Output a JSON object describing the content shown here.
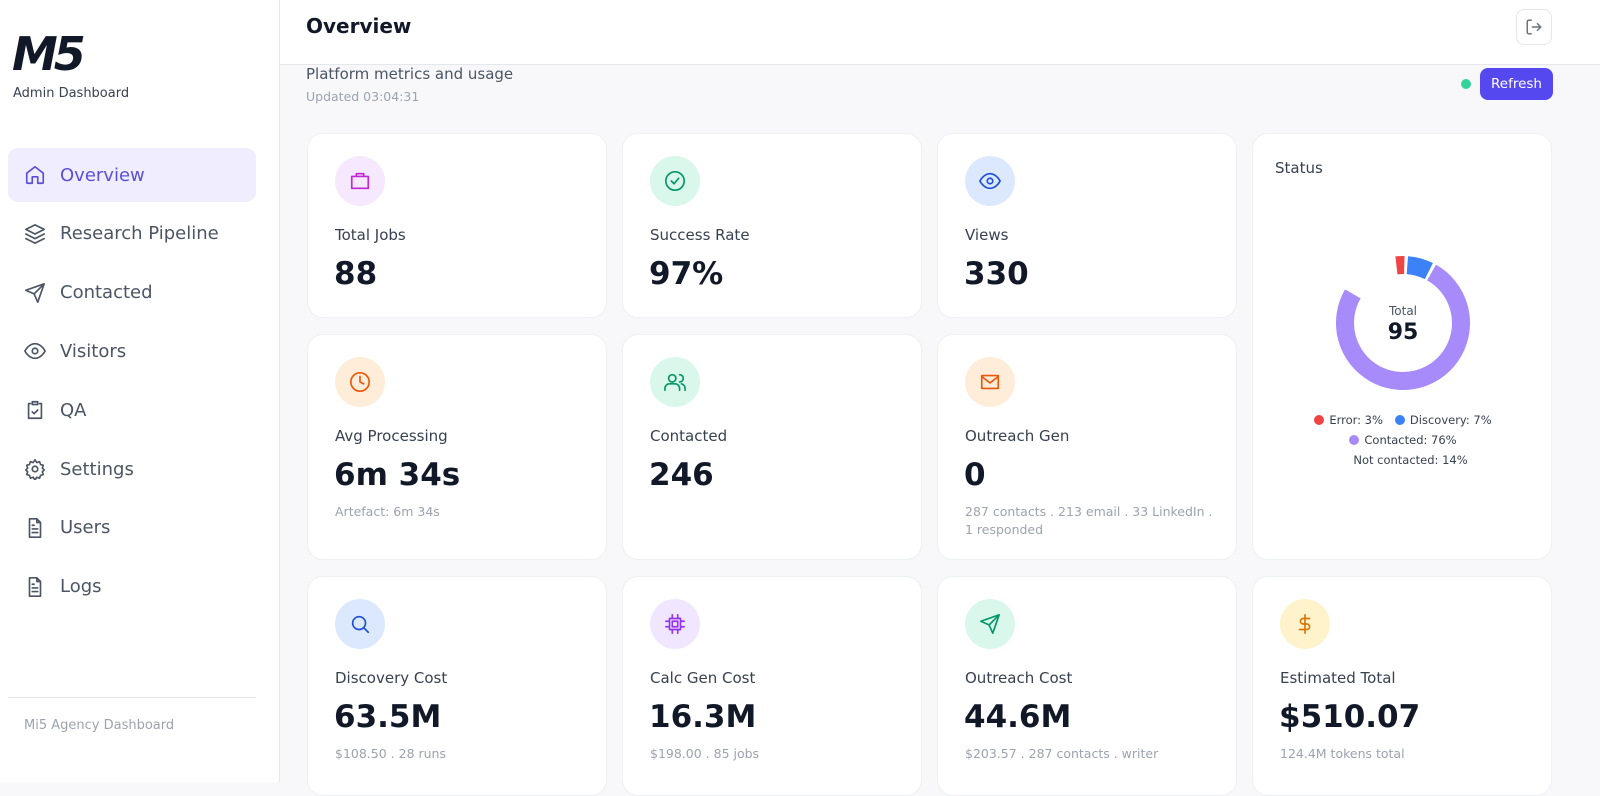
{
  "sidebar": {
    "logo": "M5",
    "subtitle": "Admin Dashboard",
    "nav": [
      "Overview",
      "Research Pipeline",
      "Contacted",
      "Visitors",
      "QA",
      "Settings",
      "Users",
      "Logs"
    ],
    "footer": "Mi5 Agency Dashboard"
  },
  "header": {
    "title": "Overview",
    "subtitle": "Platform metrics and usage",
    "updated": "Updated 03:04:31",
    "refresh": "Refresh"
  },
  "cards": [
    {
      "label": "Total Jobs",
      "value": "88"
    },
    {
      "label": "Success Rate",
      "value": "97%"
    },
    {
      "label": "Views",
      "value": "330"
    },
    {
      "label": "Avg Processing",
      "value": "6m 34s",
      "note": "Artefact: 6m 34s"
    },
    {
      "label": "Contacted",
      "value": "246"
    },
    {
      "label": "Outreach Gen",
      "value": "0",
      "note": "287 contacts . 213 email . 33 LinkedIn . 1 responded"
    },
    {
      "label": "Discovery Cost",
      "value": "63.5M",
      "note": "$108.50 . 28 runs"
    },
    {
      "label": "Calc Gen Cost",
      "value": "16.3M",
      "note": "$198.00 . 85 jobs"
    },
    {
      "label": "Outreach Cost",
      "value": "44.6M",
      "note": "$203.57 . 287 contacts . writer"
    },
    {
      "label": "Estimated Total",
      "value": "$510.07",
      "note": "124.4M tokens total"
    }
  ],
  "chart_data": {
    "type": "pie",
    "title": "Status",
    "center_label": "Total",
    "center_value": "95",
    "categories": [
      "Error",
      "Discovery",
      "Contacted",
      "Not contacted"
    ],
    "values": [
      3,
      7,
      76,
      14
    ],
    "value_labels": [
      "Error: 3%",
      "Discovery: 7%",
      "Contacted: 76%",
      "Not contacted: 14%"
    ],
    "colors": [
      "#ef4444",
      "#3b82f6",
      "#a78bfa",
      "#ffffff"
    ]
  }
}
